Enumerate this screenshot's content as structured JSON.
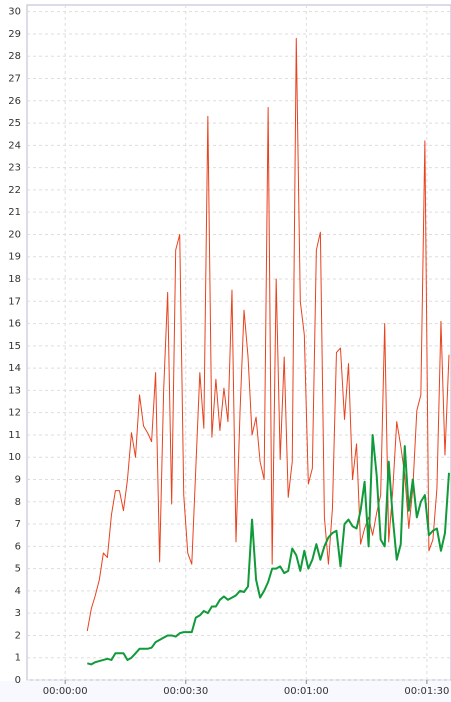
{
  "chart_data": {
    "type": "line",
    "x": [
      5.5,
      6.5,
      7.5,
      8.5,
      9.5,
      10.5,
      11.5,
      12.5,
      13.5,
      14.5,
      15.5,
      16.5,
      17.5,
      18.5,
      19.5,
      20.5,
      21.5,
      22.5,
      23.5,
      24.5,
      25.5,
      26.5,
      27.5,
      28.5,
      29.5,
      30.5,
      31.5,
      32.5,
      33.5,
      34.5,
      35.5,
      36.5,
      37.5,
      38.5,
      39.5,
      40.5,
      41.5,
      42.5,
      43.5,
      44.5,
      45.5,
      46.5,
      47.5,
      48.5,
      49.5,
      50.5,
      51.5,
      52.5,
      53.5,
      54.5,
      55.5,
      56.5,
      57.5,
      58.5,
      59.5,
      60.5,
      61.5,
      62.5,
      63.5,
      64.5,
      65.5,
      66.5,
      67.5,
      68.5,
      69.5,
      70.5,
      71.5,
      72.5,
      73.5,
      74.5,
      75.5,
      76.5,
      77.5,
      78.5,
      79.5,
      80.5,
      81.5,
      82.5,
      83.5,
      84.5,
      85.5,
      86.5,
      87.5,
      88.5,
      89.5,
      90.5,
      91.5,
      92.5,
      93.5,
      94.5,
      95.5
    ],
    "series": [
      {
        "color": "#e8421e",
        "width": 1,
        "values": [
          2.2,
          3.2,
          3.8,
          4.5,
          5.7,
          5.5,
          7.4,
          8.5,
          8.5,
          7.6,
          9,
          11.1,
          10,
          12.8,
          11.4,
          11.1,
          10.7,
          13.8,
          5.3,
          13,
          17.4,
          7.9,
          19.3,
          20,
          8.3,
          5.7,
          5.2,
          9.5,
          13.8,
          11.3,
          25.3,
          10.9,
          13.5,
          11.2,
          13.1,
          11.6,
          17.5,
          6.2,
          12,
          16.6,
          14.5,
          11,
          11.8,
          9.8,
          9,
          25.7,
          5.2,
          18,
          9.9,
          14.5,
          8.2,
          9.8,
          28.8,
          17,
          15.5,
          8.8,
          9.5,
          19.3,
          20.1,
          7.3,
          5.2,
          7.7,
          14.7,
          14.9,
          11.7,
          14.2,
          9,
          10.6,
          6.1,
          6.8,
          7.3,
          6.5,
          7.5,
          8.3,
          16,
          6.2,
          8.5,
          11.6,
          10.5,
          9.2,
          6.8,
          8.6,
          12.1,
          12.8,
          24.2,
          5.8,
          6.3,
          8.6,
          16.1,
          10.1,
          14.6
        ]
      },
      {
        "color": "#109a3a",
        "width": 2,
        "values": [
          0.75,
          0.7,
          0.8,
          0.85,
          0.9,
          0.95,
          0.9,
          1.2,
          1.2,
          1.2,
          0.9,
          1.0,
          1.2,
          1.4,
          1.4,
          1.4,
          1.45,
          1.7,
          1.8,
          1.9,
          2.0,
          2.0,
          1.95,
          2.1,
          2.15,
          2.15,
          2.15,
          2.8,
          2.9,
          3.1,
          3.0,
          3.3,
          3.3,
          3.6,
          3.75,
          3.6,
          3.7,
          3.8,
          4.0,
          3.95,
          4.2,
          7.2,
          4.5,
          3.7,
          4.0,
          4.4,
          5.0,
          5.0,
          5.1,
          4.8,
          4.9,
          5.9,
          5.6,
          4.9,
          5.8,
          5.0,
          5.4,
          6.1,
          5.4,
          6.0,
          6.4,
          6.6,
          6.7,
          5.1,
          7.0,
          7.2,
          6.9,
          6.8,
          7.6,
          8.9,
          6.0,
          11.0,
          9.2,
          6.3,
          6.0,
          9.8,
          7.3,
          5.4,
          6.1,
          10.5,
          7.6,
          9.0,
          7.3,
          8.0,
          8.3,
          6.5,
          6.7,
          6.8,
          5.8,
          6.6,
          9.3
        ]
      }
    ],
    "xlim": [
      -9.5,
      96
    ],
    "xticks": [
      {
        "value": 0,
        "label": "00:00:00"
      },
      {
        "value": 30,
        "label": "00:00:30"
      },
      {
        "value": 60,
        "label": "00:01:00"
      },
      {
        "value": 90,
        "label": "00:01:30"
      }
    ],
    "ylim": [
      0,
      30.3
    ],
    "yticks": [
      0,
      1,
      2,
      3,
      4,
      5,
      6,
      7,
      8,
      9,
      10,
      11,
      12,
      13,
      14,
      15,
      16,
      17,
      18,
      19,
      20,
      21,
      22,
      23,
      24,
      25,
      26,
      27,
      28,
      29,
      30
    ],
    "grid": true
  }
}
